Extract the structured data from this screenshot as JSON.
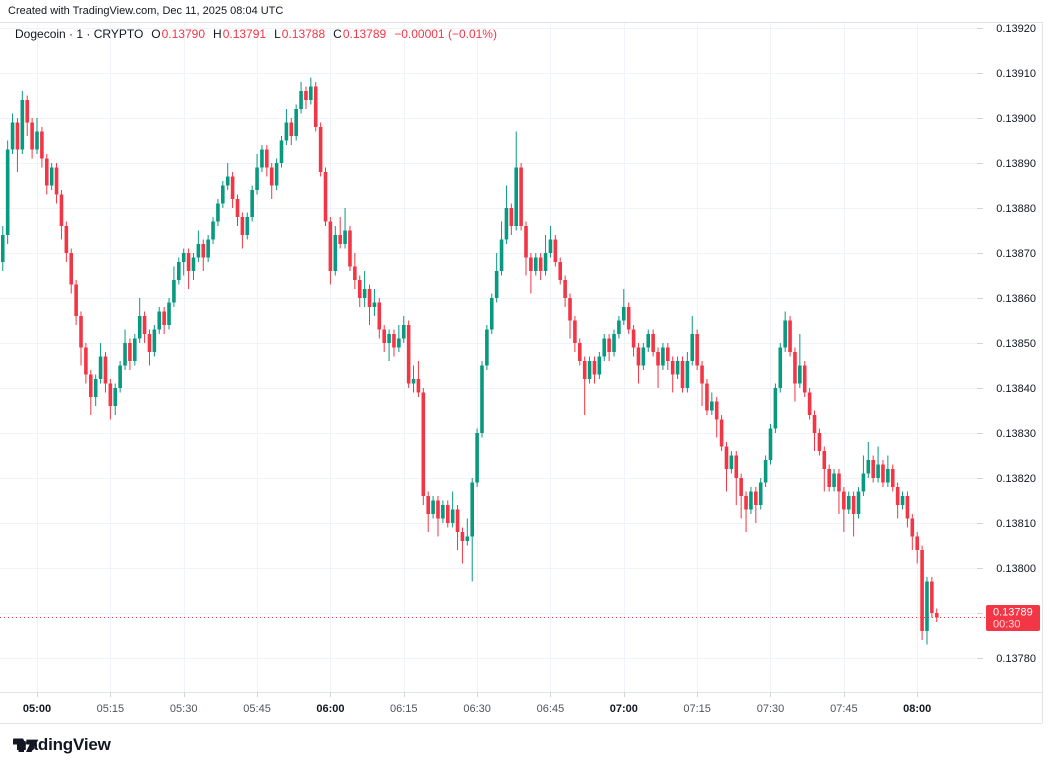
{
  "attribution": {
    "text": "Created with TradingView.com, Dec 11, 2025 08:04 UTC"
  },
  "legend": {
    "title": "Dogecoin · 1 · CRYPTO",
    "open_label": "O",
    "open_value": "0.13790",
    "high_label": "H",
    "high_value": "0.13791",
    "low_label": "L",
    "low_value": "0.13788",
    "close_label": "C",
    "close_value": "0.13789",
    "change": "−0.00001 (−0.01%)"
  },
  "logo": {
    "text": "TradingView"
  },
  "colors": {
    "up": "#089981",
    "down": "#F23645",
    "accent_red": "#F23645",
    "text": "#131722",
    "muted_text": "#50535E",
    "grid": "#F0F3FA",
    "border": "#E0E3EB",
    "tick": "#D1D4DC",
    "badge_text": "#FFFFFF"
  },
  "chart_data": {
    "type": "candlestick",
    "title": "Dogecoin · 1 · CRYPTO",
    "symbol": "Dogecoin",
    "interval": "1",
    "exchange": "CRYPTO",
    "grid": true,
    "start_time": "04:53",
    "interval_minutes": 1,
    "price_axis": {
      "tick_labels": [
        "0.13920",
        "0.13910",
        "0.13900",
        "0.13890",
        "0.13880",
        "0.13870",
        "0.13860",
        "0.13850",
        "0.13840",
        "0.13830",
        "0.13820",
        "0.13810",
        "0.13800",
        "0.13790",
        "0.13780"
      ],
      "visible_range": [
        0.13772,
        0.13926
      ]
    },
    "time_axis": {
      "ticks": [
        {
          "label": "05:00",
          "bold": true
        },
        {
          "label": "05:15",
          "bold": false
        },
        {
          "label": "05:30",
          "bold": false
        },
        {
          "label": "05:45",
          "bold": false
        },
        {
          "label": "06:00",
          "bold": true
        },
        {
          "label": "06:15",
          "bold": false
        },
        {
          "label": "06:30",
          "bold": false
        },
        {
          "label": "06:45",
          "bold": false
        },
        {
          "label": "07:00",
          "bold": true
        },
        {
          "label": "07:15",
          "bold": false
        },
        {
          "label": "07:30",
          "bold": false
        },
        {
          "label": "07:45",
          "bold": false
        },
        {
          "label": "08:00",
          "bold": true
        }
      ]
    },
    "last_price": {
      "value": "0.13789",
      "countdown": "00:30"
    },
    "candles": [
      [
        0.13868,
        0.13876,
        0.13866,
        0.13874
      ],
      [
        0.13874,
        0.13895,
        0.13872,
        0.13893
      ],
      [
        0.13893,
        0.13901,
        0.13892,
        0.13899
      ],
      [
        0.13899,
        0.139,
        0.13888,
        0.13893
      ],
      [
        0.13893,
        0.13906,
        0.13892,
        0.13904
      ],
      [
        0.13904,
        0.13905,
        0.13896,
        0.13899
      ],
      [
        0.13899,
        0.139,
        0.13891,
        0.13893
      ],
      [
        0.13893,
        0.139,
        0.13892,
        0.13897
      ],
      [
        0.13897,
        0.13898,
        0.13889,
        0.13891
      ],
      [
        0.13891,
        0.13892,
        0.13883,
        0.13885
      ],
      [
        0.13885,
        0.1389,
        0.13884,
        0.13889
      ],
      [
        0.13889,
        0.1389,
        0.13881,
        0.13883
      ],
      [
        0.13883,
        0.13884,
        0.13873,
        0.13876
      ],
      [
        0.13876,
        0.13877,
        0.13868,
        0.1387
      ],
      [
        0.1387,
        0.13871,
        0.13861,
        0.13863
      ],
      [
        0.13863,
        0.13864,
        0.13854,
        0.13856
      ],
      [
        0.13856,
        0.13857,
        0.13845,
        0.13849
      ],
      [
        0.13849,
        0.1385,
        0.13841,
        0.13843
      ],
      [
        0.13843,
        0.13844,
        0.13834,
        0.13838
      ],
      [
        0.13838,
        0.13843,
        0.13836,
        0.13842
      ],
      [
        0.13842,
        0.1385,
        0.13841,
        0.13847
      ],
      [
        0.13847,
        0.13848,
        0.13839,
        0.13841
      ],
      [
        0.13841,
        0.13842,
        0.13833,
        0.13836
      ],
      [
        0.13836,
        0.13841,
        0.13834,
        0.1384
      ],
      [
        0.1384,
        0.13846,
        0.13839,
        0.13845
      ],
      [
        0.13845,
        0.13853,
        0.13844,
        0.1385
      ],
      [
        0.1385,
        0.13851,
        0.13844,
        0.13846
      ],
      [
        0.13846,
        0.13852,
        0.13845,
        0.13851
      ],
      [
        0.13851,
        0.1386,
        0.1385,
        0.13856
      ],
      [
        0.13856,
        0.13857,
        0.1385,
        0.13852
      ],
      [
        0.13852,
        0.13853,
        0.13845,
        0.13848
      ],
      [
        0.13848,
        0.13854,
        0.13847,
        0.13853
      ],
      [
        0.13853,
        0.13858,
        0.13852,
        0.13857
      ],
      [
        0.13857,
        0.13858,
        0.13852,
        0.13854
      ],
      [
        0.13854,
        0.1386,
        0.13853,
        0.13859
      ],
      [
        0.13859,
        0.13867,
        0.13858,
        0.13864
      ],
      [
        0.13864,
        0.13869,
        0.13863,
        0.13868
      ],
      [
        0.13868,
        0.13871,
        0.13865,
        0.1387
      ],
      [
        0.1387,
        0.13871,
        0.13862,
        0.13866
      ],
      [
        0.13866,
        0.1387,
        0.13864,
        0.13869
      ],
      [
        0.13869,
        0.13875,
        0.13868,
        0.13872
      ],
      [
        0.13872,
        0.13873,
        0.13866,
        0.13869
      ],
      [
        0.13869,
        0.13874,
        0.13868,
        0.13873
      ],
      [
        0.13873,
        0.13878,
        0.13872,
        0.13877
      ],
      [
        0.13877,
        0.13882,
        0.13876,
        0.13881
      ],
      [
        0.13881,
        0.13886,
        0.1388,
        0.13885
      ],
      [
        0.13885,
        0.1389,
        0.13884,
        0.13887
      ],
      [
        0.13887,
        0.13888,
        0.1388,
        0.13882
      ],
      [
        0.13882,
        0.13883,
        0.13876,
        0.13878
      ],
      [
        0.13878,
        0.13879,
        0.13871,
        0.13874
      ],
      [
        0.13874,
        0.13879,
        0.13873,
        0.13878
      ],
      [
        0.13878,
        0.13885,
        0.13877,
        0.13884
      ],
      [
        0.13884,
        0.13892,
        0.13883,
        0.13889
      ],
      [
        0.13889,
        0.13894,
        0.13888,
        0.13893
      ],
      [
        0.13893,
        0.13894,
        0.13887,
        0.13889
      ],
      [
        0.13889,
        0.1389,
        0.13882,
        0.13885
      ],
      [
        0.13885,
        0.13891,
        0.13884,
        0.1389
      ],
      [
        0.1389,
        0.13896,
        0.13889,
        0.13895
      ],
      [
        0.13895,
        0.13902,
        0.13894,
        0.13899
      ],
      [
        0.13899,
        0.139,
        0.13894,
        0.13896
      ],
      [
        0.13896,
        0.13903,
        0.13895,
        0.13902
      ],
      [
        0.13902,
        0.13908,
        0.13901,
        0.13906
      ],
      [
        0.13906,
        0.13907,
        0.13902,
        0.13904
      ],
      [
        0.13904,
        0.13909,
        0.13903,
        0.13907
      ],
      [
        0.13907,
        0.13908,
        0.13897,
        0.13898
      ],
      [
        0.13898,
        0.13899,
        0.13887,
        0.13888
      ],
      [
        0.13888,
        0.13889,
        0.13876,
        0.13877
      ],
      [
        0.13877,
        0.13878,
        0.13863,
        0.13866
      ],
      [
        0.13866,
        0.13876,
        0.13865,
        0.13874
      ],
      [
        0.13874,
        0.13878,
        0.13871,
        0.13872
      ],
      [
        0.13872,
        0.1388,
        0.13871,
        0.13875
      ],
      [
        0.13875,
        0.13876,
        0.13866,
        0.13867
      ],
      [
        0.13867,
        0.1387,
        0.13862,
        0.13864
      ],
      [
        0.13864,
        0.13865,
        0.13858,
        0.1386
      ],
      [
        0.1386,
        0.13866,
        0.13858,
        0.13862
      ],
      [
        0.13862,
        0.13863,
        0.13854,
        0.13858
      ],
      [
        0.13858,
        0.13862,
        0.13856,
        0.13859
      ],
      [
        0.13859,
        0.1386,
        0.13851,
        0.13853
      ],
      [
        0.13853,
        0.13854,
        0.13848,
        0.1385
      ],
      [
        0.1385,
        0.13853,
        0.13846,
        0.13852
      ],
      [
        0.13852,
        0.13853,
        0.13847,
        0.13849
      ],
      [
        0.13849,
        0.13854,
        0.13848,
        0.13851
      ],
      [
        0.13851,
        0.13856,
        0.1385,
        0.13854
      ],
      [
        0.13854,
        0.13855,
        0.1384,
        0.13841
      ],
      [
        0.13841,
        0.13845,
        0.13839,
        0.13842
      ],
      [
        0.13842,
        0.13846,
        0.13838,
        0.13839
      ],
      [
        0.13839,
        0.1384,
        0.13814,
        0.13816
      ],
      [
        0.13816,
        0.13817,
        0.13808,
        0.13812
      ],
      [
        0.13812,
        0.13816,
        0.13811,
        0.13815
      ],
      [
        0.13815,
        0.13816,
        0.13807,
        0.13811
      ],
      [
        0.13811,
        0.13815,
        0.1381,
        0.13814
      ],
      [
        0.13814,
        0.13815,
        0.13809,
        0.1381
      ],
      [
        0.1381,
        0.13817,
        0.13809,
        0.13813
      ],
      [
        0.13813,
        0.13814,
        0.13804,
        0.13808
      ],
      [
        0.13808,
        0.13809,
        0.13801,
        0.13806
      ],
      [
        0.13806,
        0.13811,
        0.13805,
        0.13807
      ],
      [
        0.13807,
        0.1382,
        0.13797,
        0.13819
      ],
      [
        0.13819,
        0.13831,
        0.13818,
        0.1383
      ],
      [
        0.1383,
        0.13846,
        0.13829,
        0.13845
      ],
      [
        0.13845,
        0.13854,
        0.13844,
        0.13853
      ],
      [
        0.13853,
        0.13861,
        0.13852,
        0.1386
      ],
      [
        0.1386,
        0.1387,
        0.13859,
        0.13866
      ],
      [
        0.13866,
        0.13877,
        0.13865,
        0.13873
      ],
      [
        0.13873,
        0.13885,
        0.13872,
        0.1388
      ],
      [
        0.1388,
        0.13881,
        0.13874,
        0.13876
      ],
      [
        0.13876,
        0.13897,
        0.13875,
        0.13889
      ],
      [
        0.13889,
        0.1389,
        0.13875,
        0.13876
      ],
      [
        0.13876,
        0.13877,
        0.13865,
        0.13869
      ],
      [
        0.13869,
        0.1387,
        0.13861,
        0.13866
      ],
      [
        0.13866,
        0.1387,
        0.13865,
        0.13869
      ],
      [
        0.13869,
        0.1387,
        0.13864,
        0.13866
      ],
      [
        0.13866,
        0.13874,
        0.13865,
        0.1387
      ],
      [
        0.1387,
        0.13876,
        0.13869,
        0.13873
      ],
      [
        0.13873,
        0.13874,
        0.13867,
        0.13868
      ],
      [
        0.13868,
        0.13869,
        0.13863,
        0.13864
      ],
      [
        0.13864,
        0.13865,
        0.13858,
        0.1386
      ],
      [
        0.1386,
        0.13861,
        0.13851,
        0.13855
      ],
      [
        0.13855,
        0.13856,
        0.13848,
        0.1385
      ],
      [
        0.1385,
        0.13851,
        0.13845,
        0.13846
      ],
      [
        0.13846,
        0.13847,
        0.13834,
        0.13842
      ],
      [
        0.13842,
        0.13847,
        0.13841,
        0.13846
      ],
      [
        0.13846,
        0.13847,
        0.13841,
        0.13843
      ],
      [
        0.13843,
        0.13848,
        0.13842,
        0.13847
      ],
      [
        0.13847,
        0.13852,
        0.13846,
        0.13851
      ],
      [
        0.13851,
        0.13852,
        0.13846,
        0.13848
      ],
      [
        0.13848,
        0.13853,
        0.13847,
        0.13852
      ],
      [
        0.13852,
        0.13856,
        0.13851,
        0.13855
      ],
      [
        0.13855,
        0.13862,
        0.13854,
        0.13858
      ],
      [
        0.13858,
        0.13859,
        0.13852,
        0.13853
      ],
      [
        0.13853,
        0.13854,
        0.13847,
        0.13849
      ],
      [
        0.13849,
        0.1385,
        0.13841,
        0.13845
      ],
      [
        0.13845,
        0.1385,
        0.13844,
        0.13849
      ],
      [
        0.13849,
        0.13853,
        0.13848,
        0.13852
      ],
      [
        0.13852,
        0.13853,
        0.13847,
        0.13848
      ],
      [
        0.13848,
        0.13849,
        0.1384,
        0.13845
      ],
      [
        0.13845,
        0.1385,
        0.13844,
        0.13849
      ],
      [
        0.13849,
        0.1385,
        0.13844,
        0.13846
      ],
      [
        0.13846,
        0.13847,
        0.13839,
        0.13843
      ],
      [
        0.13843,
        0.13847,
        0.13842,
        0.13846
      ],
      [
        0.13846,
        0.13847,
        0.13839,
        0.1384
      ],
      [
        0.1384,
        0.13848,
        0.13839,
        0.13846
      ],
      [
        0.13846,
        0.13856,
        0.13845,
        0.13852
      ],
      [
        0.13852,
        0.13853,
        0.13844,
        0.13845
      ],
      [
        0.13845,
        0.13846,
        0.13836,
        0.13841
      ],
      [
        0.13841,
        0.13842,
        0.13834,
        0.13835
      ],
      [
        0.13835,
        0.13839,
        0.13834,
        0.13837
      ],
      [
        0.13837,
        0.13838,
        0.13829,
        0.13833
      ],
      [
        0.13833,
        0.13834,
        0.13826,
        0.13827
      ],
      [
        0.13827,
        0.13828,
        0.13817,
        0.13822
      ],
      [
        0.13822,
        0.13826,
        0.13821,
        0.13825
      ],
      [
        0.13825,
        0.13826,
        0.13814,
        0.1382
      ],
      [
        0.1382,
        0.13821,
        0.13811,
        0.13816
      ],
      [
        0.13816,
        0.13817,
        0.13808,
        0.13813
      ],
      [
        0.13813,
        0.13818,
        0.13812,
        0.13817
      ],
      [
        0.13817,
        0.13818,
        0.1381,
        0.13814
      ],
      [
        0.13814,
        0.1382,
        0.13813,
        0.13819
      ],
      [
        0.13819,
        0.13825,
        0.13818,
        0.13824
      ],
      [
        0.13824,
        0.13832,
        0.13823,
        0.13831
      ],
      [
        0.13831,
        0.13841,
        0.1383,
        0.1384
      ],
      [
        0.1384,
        0.1385,
        0.13839,
        0.13849
      ],
      [
        0.13849,
        0.13857,
        0.13848,
        0.13855
      ],
      [
        0.13855,
        0.13856,
        0.13847,
        0.13848
      ],
      [
        0.13848,
        0.13849,
        0.13837,
        0.13841
      ],
      [
        0.13841,
        0.13852,
        0.1384,
        0.13845
      ],
      [
        0.13845,
        0.13846,
        0.13838,
        0.13839
      ],
      [
        0.13839,
        0.1384,
        0.13833,
        0.13834
      ],
      [
        0.13834,
        0.13835,
        0.13826,
        0.1383
      ],
      [
        0.1383,
        0.13831,
        0.13825,
        0.13826
      ],
      [
        0.13826,
        0.13827,
        0.13817,
        0.13822
      ],
      [
        0.13822,
        0.13823,
        0.13817,
        0.13818
      ],
      [
        0.13818,
        0.13822,
        0.13817,
        0.13821
      ],
      [
        0.13821,
        0.13822,
        0.13812,
        0.13817
      ],
      [
        0.13817,
        0.13818,
        0.13808,
        0.13813
      ],
      [
        0.13813,
        0.13817,
        0.13812,
        0.13816
      ],
      [
        0.13816,
        0.13817,
        0.13807,
        0.13812
      ],
      [
        0.13812,
        0.13818,
        0.13811,
        0.13817
      ],
      [
        0.13817,
        0.13825,
        0.13816,
        0.13821
      ],
      [
        0.13821,
        0.13828,
        0.1382,
        0.13824
      ],
      [
        0.13824,
        0.13825,
        0.13819,
        0.1382
      ],
      [
        0.1382,
        0.13827,
        0.13819,
        0.13823
      ],
      [
        0.13823,
        0.13824,
        0.13818,
        0.13819
      ],
      [
        0.13819,
        0.13825,
        0.13818,
        0.13822
      ],
      [
        0.13822,
        0.13823,
        0.13817,
        0.13818
      ],
      [
        0.13818,
        0.13819,
        0.13811,
        0.13814
      ],
      [
        0.13814,
        0.13817,
        0.13813,
        0.13816
      ],
      [
        0.13816,
        0.13817,
        0.13809,
        0.13811
      ],
      [
        0.13811,
        0.13812,
        0.13804,
        0.13807
      ],
      [
        0.13807,
        0.13808,
        0.13801,
        0.13804
      ],
      [
        0.13804,
        0.13805,
        0.13784,
        0.13786
      ],
      [
        0.13786,
        0.13798,
        0.13783,
        0.13797
      ],
      [
        0.13797,
        0.13798,
        0.13789,
        0.1379
      ],
      [
        0.1379,
        0.13791,
        0.13788,
        0.13789
      ]
    ]
  }
}
